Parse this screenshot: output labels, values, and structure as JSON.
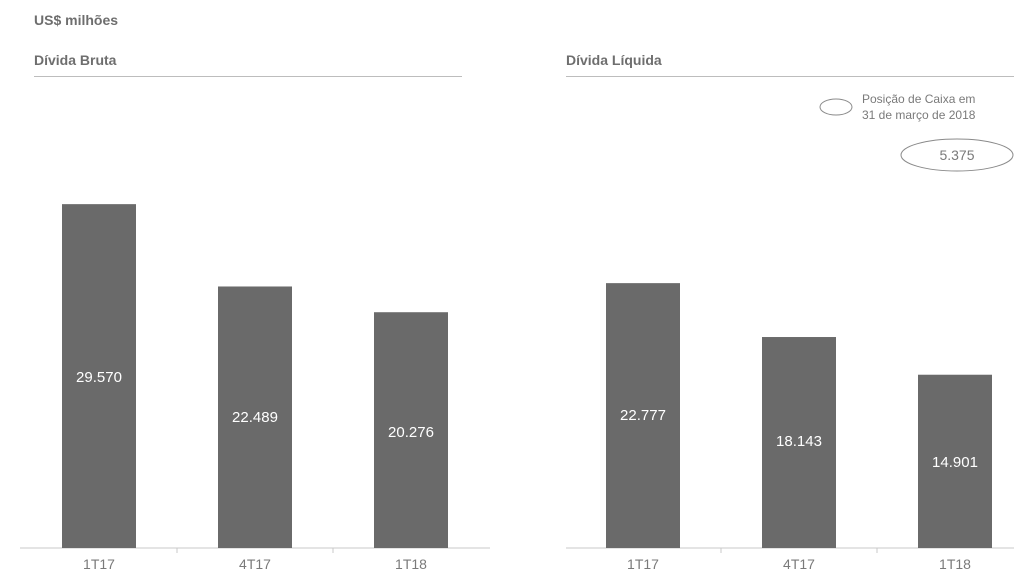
{
  "units": "US$ milhões",
  "chart_data": [
    {
      "type": "bar",
      "title": "Dívida Bruta",
      "categories": [
        "1T17",
        "4T17",
        "1T18"
      ],
      "values": [
        29570,
        22489,
        20276
      ],
      "value_labels": [
        "29.570",
        "22.489",
        "20.276"
      ],
      "ylim": [
        0,
        35000
      ],
      "bar_color": "#6a6a6a"
    },
    {
      "type": "bar",
      "title": "Dívida Líquida",
      "categories": [
        "1T17",
        "4T17",
        "1T18"
      ],
      "values": [
        22777,
        18143,
        14901
      ],
      "value_labels": [
        "22.777",
        "18.143",
        "14.901"
      ],
      "ylim": [
        0,
        35000
      ],
      "bar_color": "#6a6a6a",
      "legend": {
        "label_line1": "Posição de Caixa em",
        "label_line2": "31 de março de 2018",
        "value": "5.375"
      }
    }
  ]
}
